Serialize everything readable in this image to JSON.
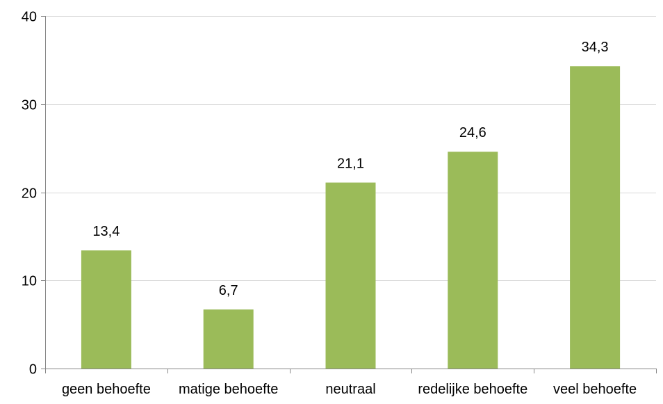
{
  "chart_data": {
    "type": "bar",
    "title": "",
    "xlabel": "",
    "ylabel": "",
    "categories": [
      "geen behoefte",
      "matige behoefte",
      "neutraal",
      "redelijke behoefte",
      "veel behoefte"
    ],
    "values": [
      13.4,
      6.7,
      21.1,
      24.6,
      34.3
    ],
    "value_labels": [
      "13,4",
      "6,7",
      "21,1",
      "24,6",
      "34,3"
    ],
    "ylim": [
      0,
      40
    ],
    "yticks": [
      0,
      10,
      20,
      30,
      40
    ],
    "ytick_labels": [
      "0",
      "10",
      "20",
      "30",
      "40"
    ],
    "grid": "horizontal",
    "legend": "none",
    "colors": {
      "bar": "#9BBB59",
      "grid": "#D9D9D9",
      "axis": "#868686"
    }
  }
}
